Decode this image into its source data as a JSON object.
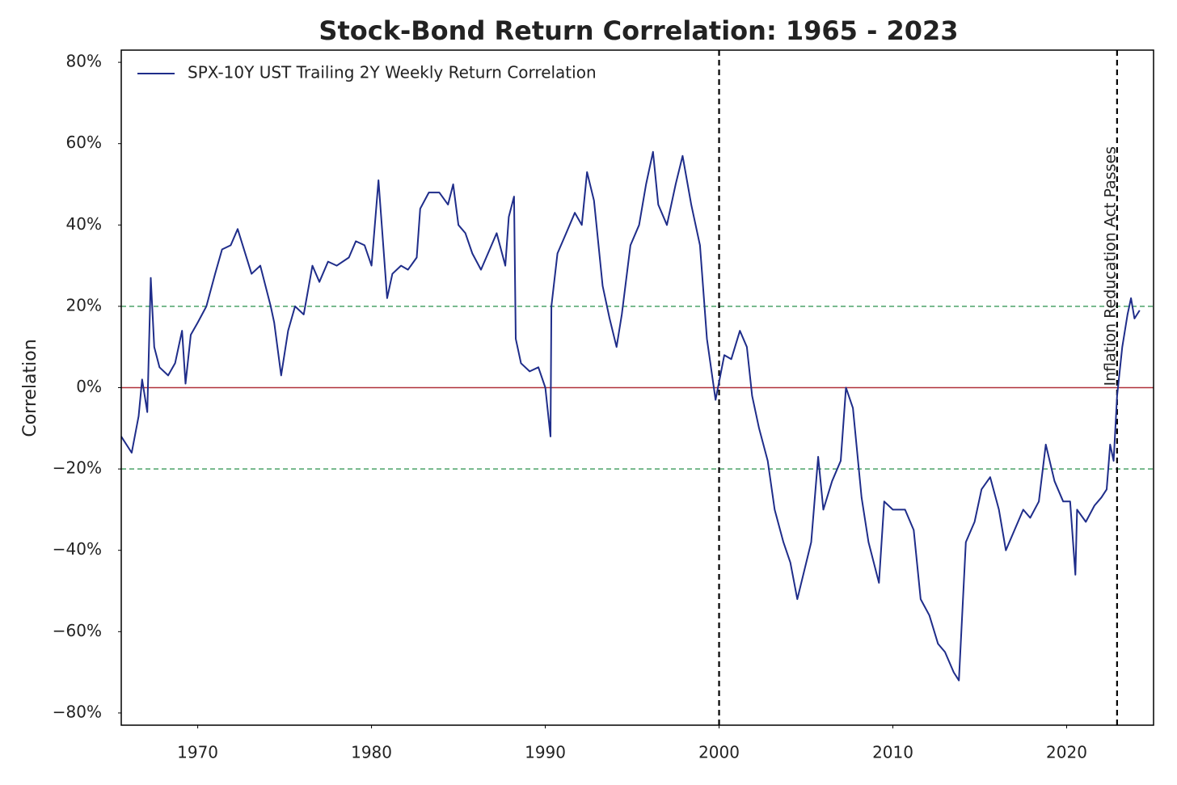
{
  "chart_data": {
    "type": "line",
    "title": "Stock-Bond Return Correlation: 1965 - 2023",
    "y_label": "Correlation",
    "annotation": "Inflation Reducation Act Passes",
    "xlim": [
      1965.6,
      2025.0
    ],
    "ylim": [
      -83,
      83
    ],
    "xticks": [
      1970,
      1980,
      1990,
      2000,
      2010,
      2020
    ],
    "yticks": [
      {
        "value": -80,
        "label": "−80%"
      },
      {
        "value": -60,
        "label": "−60%"
      },
      {
        "value": -40,
        "label": "−40%"
      },
      {
        "value": -20,
        "label": "−20%"
      },
      {
        "value": 0,
        "label": "0%"
      },
      {
        "value": 20,
        "label": "20%"
      },
      {
        "value": 40,
        "label": "40%"
      },
      {
        "value": 60,
        "label": "60%"
      },
      {
        "value": 80,
        "label": "80%"
      }
    ],
    "grid": false,
    "legend": "upper left",
    "vlines": [
      {
        "value": 2000,
        "color": "#000000"
      },
      {
        "value": 2022.9,
        "color": "#000000"
      }
    ],
    "hlines": [
      {
        "value": 20,
        "color": "#3a9a5a"
      },
      {
        "value": 0,
        "color": "#b0303a"
      },
      {
        "value": -20,
        "color": "#3a9a5a"
      }
    ],
    "series": [
      {
        "name": "SPX-10Y UST Trailing 2Y Weekly Return Correlation",
        "color": "#1f2d8a",
        "x": [
          1965.6,
          1966.2,
          1966.6,
          1966.8,
          1967.1,
          1967.3,
          1967.5,
          1967.8,
          1968.3,
          1968.7,
          1969.1,
          1969.3,
          1969.6,
          1970.0,
          1970.5,
          1971.0,
          1971.4,
          1971.9,
          1972.3,
          1973.1,
          1973.6,
          1974.2,
          1974.4,
          1974.8,
          1975.2,
          1975.6,
          1976.1,
          1976.6,
          1977.0,
          1977.5,
          1978.0,
          1978.7,
          1979.1,
          1979.6,
          1980.0,
          1980.4,
          1980.9,
          1981.2,
          1981.7,
          1982.1,
          1982.6,
          1982.8,
          1983.3,
          1983.9,
          1984.4,
          1984.7,
          1985.0,
          1985.4,
          1985.8,
          1986.3,
          1986.8,
          1987.2,
          1987.7,
          1987.9,
          1988.2,
          1988.3,
          1988.6,
          1989.1,
          1989.6,
          1990.0,
          1990.3,
          1990.35,
          1990.7,
          1991.2,
          1991.7,
          1992.1,
          1992.4,
          1992.8,
          1993.3,
          1993.7,
          1994.1,
          1994.4,
          1994.9,
          1995.4,
          1995.8,
          1996.2,
          1996.5,
          1997.0,
          1997.5,
          1997.9,
          1998.4,
          1998.9,
          1999.3,
          1999.8,
          2000.3,
          2000.7,
          2001.2,
          2001.6,
          2001.9,
          2002.3,
          2002.8,
          2003.2,
          2003.7,
          2004.1,
          2004.5,
          2004.9,
          2005.3,
          2005.7,
          2006.0,
          2006.5,
          2007.0,
          2007.3,
          2007.7,
          2008.2,
          2008.6,
          2009.2,
          2009.5,
          2010.0,
          2010.7,
          2011.2,
          2011.6,
          2012.1,
          2012.6,
          2013.0,
          2013.5,
          2013.8,
          2014.2,
          2014.7,
          2015.1,
          2015.6,
          2016.1,
          2016.5,
          2017.0,
          2017.5,
          2017.9,
          2018.4,
          2018.8,
          2019.3,
          2019.8,
          2020.2,
          2020.5,
          2020.6,
          2021.1,
          2021.6,
          2022.0,
          2022.3,
          2022.5,
          2022.7,
          2022.9,
          2023.2,
          2023.5,
          2023.7,
          2023.9,
          2024.2
        ],
        "values": [
          -12,
          -16,
          -7,
          2,
          -6,
          27,
          10,
          5,
          3,
          6,
          14,
          1,
          13,
          16,
          20,
          28,
          34,
          35,
          39,
          28,
          30,
          20,
          16,
          3,
          14,
          20,
          18,
          30,
          26,
          31,
          30,
          32,
          36,
          35,
          30,
          51,
          22,
          28,
          30,
          29,
          32,
          44,
          48,
          48,
          45,
          50,
          40,
          38,
          33,
          29,
          34,
          38,
          30,
          42,
          47,
          12,
          6,
          4,
          5,
          0,
          -12,
          20,
          33,
          38,
          43,
          40,
          53,
          46,
          25,
          17,
          10,
          18,
          35,
          40,
          50,
          58,
          45,
          40,
          50,
          57,
          45,
          35,
          12,
          -3,
          8,
          7,
          14,
          10,
          -2,
          -10,
          -18,
          -30,
          -38,
          -43,
          -52,
          -45,
          -38,
          -17,
          -30,
          -23,
          -18,
          0,
          -5,
          -27,
          -38,
          -48,
          -28,
          -30,
          -30,
          -35,
          -52,
          -56,
          -63,
          -65,
          -70,
          -72,
          -38,
          -33,
          -25,
          -22,
          -30,
          -40,
          -35,
          -30,
          -32,
          -28,
          -14,
          -23,
          -28,
          -28,
          -46,
          -30,
          -33,
          -29,
          -27,
          -25,
          -14,
          -18,
          -2,
          10,
          18,
          22,
          17,
          19
        ]
      }
    ]
  }
}
